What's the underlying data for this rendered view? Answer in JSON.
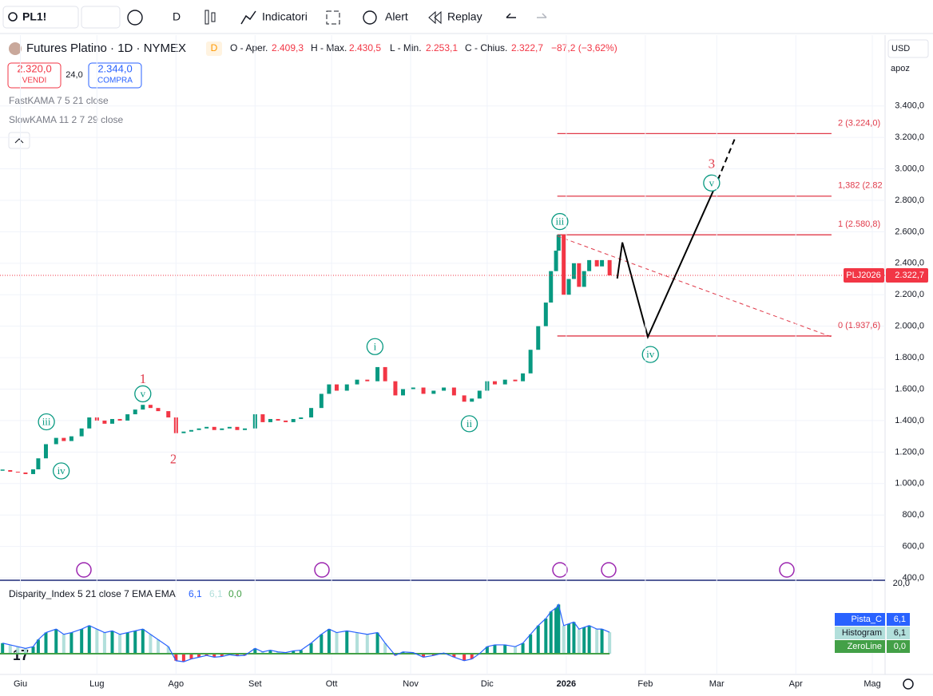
{
  "toolbar": {
    "symbol": "PL1!",
    "interval": "D",
    "indicators": "Indicatori",
    "alert": "Alert",
    "replay": "Replay"
  },
  "legend": {
    "title": "Futures Platino · 1D · NYMEX",
    "badge": "D",
    "open_label": "O - Aper.",
    "open": "2.409,3",
    "high_label": "H - Max.",
    "high": "2.430,5",
    "low_label": "L - Min.",
    "low": "2.253,1",
    "close_label": "C - Chius.",
    "close": "2.322,7",
    "change": "−87,2 (−3,62%)",
    "sell_price": "2.320,0",
    "sell": "VENDI",
    "spread": "24,0",
    "buy_price": "2.344,0",
    "buy": "COMPRA",
    "study1": "FastKAMA 7 5 21 close",
    "study2": "SlowKAMA 11 2 7 29 close"
  },
  "scale": {
    "currency": "USD",
    "mode": "apoz"
  },
  "chart_data": [
    {
      "type": "candlestick",
      "up_color": "#089981",
      "down_color": "#f23645",
      "x": [
        -7,
        -4,
        -1,
        2,
        5,
        7,
        10,
        14,
        17,
        20,
        24,
        27,
        30,
        33,
        36,
        39,
        42,
        45,
        48,
        51,
        54,
        58,
        61,
        64,
        67,
        70,
        73,
        76,
        79,
        82,
        85,
        88,
        92,
        95,
        98,
        101,
        104,
        107,
        110,
        114,
        118,
        121,
        124,
        128,
        132,
        136,
        140,
        143,
        147,
        150,
        154,
        158,
        162,
        166,
        170,
        174,
        177,
        180,
        183,
        186,
        190,
        194,
        197,
        200,
        203,
        206,
        208,
        210,
        211,
        213,
        215,
        217,
        219,
        221,
        223,
        226,
        228,
        231
      ],
      "values": [
        1085,
        1075,
        1070,
        1060,
        1090,
        1160,
        1250,
        1290,
        1270,
        1300,
        1350,
        1420,
        1400,
        1380,
        1410,
        1400,
        1440,
        1470,
        1500,
        1480,
        1460,
        1420,
        1320,
        1330,
        1340,
        1350,
        1360,
        1340,
        1350,
        1360,
        1340,
        1350,
        1440,
        1390,
        1410,
        1400,
        1390,
        1410,
        1420,
        1480,
        1570,
        1630,
        1590,
        1630,
        1660,
        1650,
        1740,
        1650,
        1560,
        1600,
        1610,
        1570,
        1590,
        1610,
        1560,
        1520,
        1540,
        1590,
        1650,
        1630,
        1660,
        1650,
        1700,
        1850,
        2000,
        2150,
        2350,
        2480,
        2580,
        2200,
        2300,
        2400,
        2250,
        2350,
        2420,
        2380,
        2420,
        2322.7
      ],
      "xlim": [
        -8,
        339
      ],
      "xticks": [
        {
          "value": 0,
          "label": "Giu"
        },
        {
          "value": 30,
          "label": "Lug"
        },
        {
          "value": 61,
          "label": "Ago"
        },
        {
          "value": 92,
          "label": "Set"
        },
        {
          "value": 122,
          "label": "Ott"
        },
        {
          "value": 153,
          "label": "Nov"
        },
        {
          "value": 183,
          "label": "Dic"
        },
        {
          "value": 214,
          "label": "2026"
        },
        {
          "value": 245,
          "label": "Feb"
        },
        {
          "value": 273,
          "label": "Mar"
        },
        {
          "value": 304,
          "label": "Apr"
        },
        {
          "value": 334,
          "label": "Mag"
        }
      ],
      "ylim": [
        385,
        3850
      ],
      "yticks": [
        {
          "value": 400,
          "label": "400,0"
        },
        {
          "value": 600,
          "label": "600,0"
        },
        {
          "value": 800,
          "label": "800,0"
        },
        {
          "value": 1000,
          "label": "1.000,0"
        },
        {
          "value": 1200,
          "label": "1.200,0"
        },
        {
          "value": 1400,
          "label": "1.400,0"
        },
        {
          "value": 1600,
          "label": "1.600,0"
        },
        {
          "value": 1800,
          "label": "1.800,0"
        },
        {
          "value": 2000,
          "label": "2.000,0"
        },
        {
          "value": 2200,
          "label": "2.200,0"
        },
        {
          "value": 2400,
          "label": "2.400,0"
        },
        {
          "value": 2600,
          "label": "2.600,0"
        },
        {
          "value": 2800,
          "label": "2.800,0"
        },
        {
          "value": 3000,
          "label": "3.000,0"
        },
        {
          "value": 3200,
          "label": "3.200,0"
        },
        {
          "value": 3400,
          "label": "3.400,0"
        }
      ],
      "grid": true,
      "last_price": {
        "name": "PLJ2026",
        "value": 2322.7,
        "label": "2.322,7",
        "color": "#f23645"
      },
      "fib_color": "#e03a4a",
      "fib_x": [
        210.5,
        318
      ],
      "fib": [
        {
          "value": 3224,
          "label": "2 (3.224,0)"
        },
        {
          "value": 2826.5,
          "label": "1,382 (2.82"
        },
        {
          "value": 2580.8,
          "label": "1 (2.580,8)"
        },
        {
          "value": 1937.6,
          "label": "0 (1.937,6)"
        }
      ],
      "trendline": {
        "x": [
          210.5,
          318
        ],
        "y": [
          2573,
          1932
        ]
      },
      "projection": {
        "x": [
          234,
          236,
          246,
          272
        ],
        "y": [
          2303,
          2532,
          1932,
          2873
        ]
      },
      "projection_dashed": {
        "x": [
          272,
          280
        ],
        "y": [
          2873,
          3188
        ]
      },
      "waves": [
        {
          "text": "iii",
          "x": 10.2,
          "y": 1392,
          "circled": true
        },
        {
          "text": "iv",
          "x": 16,
          "y": 1080,
          "circled": true
        },
        {
          "text": "v",
          "x": 48,
          "y": 1570,
          "circled": true
        },
        {
          "text": "1",
          "x": 48,
          "y": 1657,
          "circled": false
        },
        {
          "text": "2",
          "x": 60,
          "y": 1148,
          "circled": false
        },
        {
          "text": "i",
          "x": 139,
          "y": 1870,
          "circled": true
        },
        {
          "text": "ii",
          "x": 176,
          "y": 1380,
          "circled": true
        },
        {
          "text": "iii",
          "x": 211.5,
          "y": 2665,
          "circled": true
        },
        {
          "text": "iv",
          "x": 247,
          "y": 1820,
          "circled": true
        },
        {
          "text": "v",
          "x": 271,
          "y": 2910,
          "circled": true
        },
        {
          "text": "3",
          "x": 271,
          "y": 3025,
          "circled": false
        }
      ]
    },
    {
      "type": "bar",
      "title": "Disparity_Index 5 21 close 7 EMA EMA",
      "header_values": [
        "6,1",
        "6,1",
        "0,0"
      ],
      "values": [
        3,
        2.5,
        2,
        1.5,
        2,
        4,
        6,
        7,
        5.5,
        6,
        7,
        8,
        7,
        6,
        6.5,
        5.5,
        6,
        6.5,
        7,
        5.5,
        4,
        2,
        -2,
        -2.3,
        -1.5,
        -1,
        -0.5,
        -1,
        -0.8,
        -0.3,
        -0.6,
        -0.5,
        1.5,
        0.5,
        1,
        0.5,
        0.3,
        0.8,
        1,
        3,
        5.5,
        7,
        6,
        6.5,
        6,
        5.5,
        6,
        3,
        -0.5,
        0.5,
        0.3,
        -1,
        -0.5,
        0.2,
        -1,
        -2,
        -1.5,
        0,
        2,
        2.5,
        2.5,
        2,
        3,
        5.5,
        8,
        10,
        12,
        13,
        14,
        8,
        8.5,
        9,
        7,
        7.5,
        8,
        7,
        7,
        6.1
      ],
      "ylim": [
        -6.6,
        20.9
      ],
      "yticks": [
        {
          "value": 20,
          "label": "20,0"
        }
      ],
      "up_color": "#089981",
      "fall_color": "#b2dfdb",
      "down_color": "#f23645",
      "plots": [
        {
          "name": "Pista_C",
          "label": "6,1",
          "color": "#2962ff"
        },
        {
          "name": "Histogram",
          "label": "6,1",
          "color": "#b2dfdb"
        },
        {
          "name": "ZeroLine",
          "label": "0,0",
          "color": "#43a047"
        }
      ]
    }
  ]
}
